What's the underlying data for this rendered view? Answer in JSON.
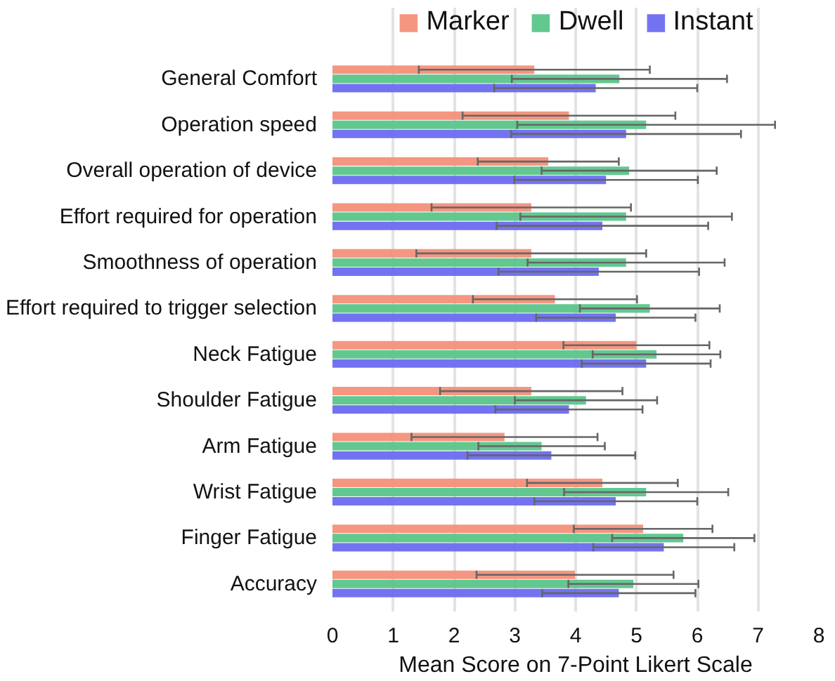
{
  "chart_data": {
    "type": "bar",
    "orientation": "horizontal",
    "xlabel": "Mean Score on 7-Point Likert Scale",
    "categories": [
      "General Comfort",
      "Operation speed",
      "Overall operation of device",
      "Effort required for operation",
      "Smoothness of operation",
      "Effort required to trigger selection",
      "Neck Fatigue",
      "Shoulder Fatigue",
      "Arm Fatigue",
      "Wrist Fatigue",
      "Finger Fatigue",
      "Accuracy"
    ],
    "series": [
      {
        "name": "Marker",
        "color": "#f4907a",
        "values": [
          3.32,
          3.89,
          3.55,
          3.27,
          3.27,
          3.66,
          5.0,
          3.27,
          2.83,
          4.44,
          5.11,
          3.99
        ],
        "errors": [
          1.9,
          1.75,
          1.16,
          1.64,
          1.89,
          1.35,
          1.2,
          1.5,
          1.53,
          1.24,
          1.14,
          1.62
        ]
      },
      {
        "name": "Dwell",
        "color": "#5bc58a",
        "values": [
          4.72,
          5.16,
          4.88,
          4.83,
          4.83,
          5.22,
          5.33,
          4.17,
          3.44,
          5.16,
          5.77,
          4.95
        ],
        "errors": [
          1.77,
          2.12,
          1.44,
          1.74,
          1.62,
          1.15,
          1.05,
          1.17,
          1.04,
          1.35,
          1.17,
          1.07
        ]
      },
      {
        "name": "Instant",
        "color": "#6b6bf0",
        "values": [
          4.33,
          4.83,
          4.5,
          4.44,
          4.38,
          4.66,
          5.16,
          3.89,
          3.6,
          4.66,
          5.45,
          4.71
        ],
        "errors": [
          1.67,
          1.89,
          1.51,
          1.74,
          1.65,
          1.31,
          1.06,
          1.21,
          1.38,
          1.34,
          1.16,
          1.26
        ]
      }
    ],
    "xlim": [
      0,
      8
    ],
    "xticks": [
      0,
      1,
      2,
      3,
      4,
      5,
      6,
      7,
      8
    ],
    "grid": "x",
    "legend": "top"
  }
}
